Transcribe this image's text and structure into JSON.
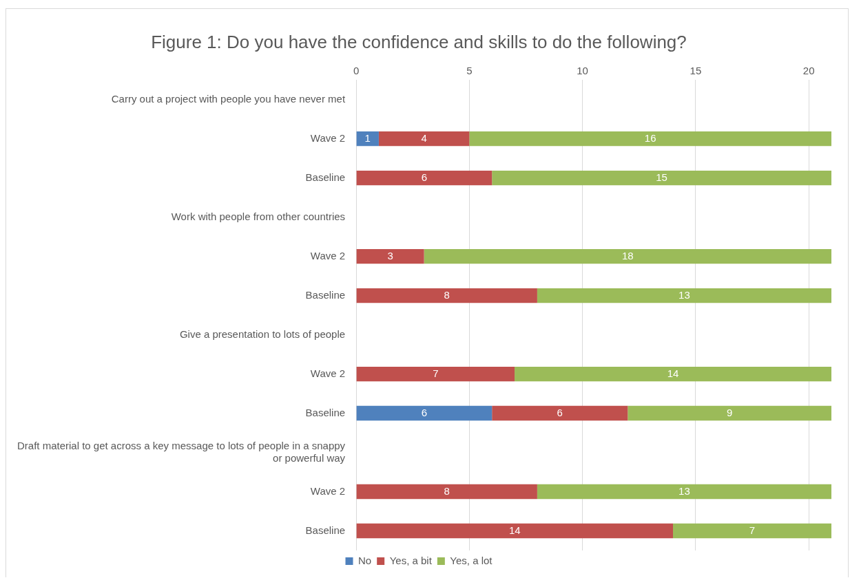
{
  "chart_data": {
    "type": "bar",
    "orientation": "horizontal",
    "stacked": true,
    "title": "Figure 1: Do you have the confidence and skills to do the following?",
    "categories": [
      "Carry out a project with people you have never met",
      "Wave 2",
      "Baseline",
      "Work with people from other countries",
      "Wave 2",
      "Baseline",
      "Give a presentation to lots of people",
      "Wave 2",
      "Baseline",
      "Draft material to get across a key message to lots of people in a snappy or powerful way",
      "Wave 2",
      "Baseline"
    ],
    "series": [
      {
        "name": "No",
        "color": "#4f81bd",
        "values": [
          null,
          1,
          null,
          null,
          null,
          null,
          null,
          null,
          6,
          null,
          null,
          null
        ]
      },
      {
        "name": "Yes, a bit",
        "color": "#c0504d",
        "values": [
          null,
          4,
          6,
          null,
          3,
          8,
          null,
          7,
          6,
          null,
          8,
          14
        ]
      },
      {
        "name": "Yes, a lot",
        "color": "#9bbb59",
        "values": [
          null,
          16,
          15,
          null,
          18,
          13,
          null,
          14,
          9,
          null,
          13,
          7
        ]
      }
    ],
    "xlim": [
      0,
      21
    ],
    "xticks": [
      0,
      5,
      10,
      15,
      20
    ],
    "grid": "x",
    "legend": "bottom",
    "data_labels": true
  }
}
